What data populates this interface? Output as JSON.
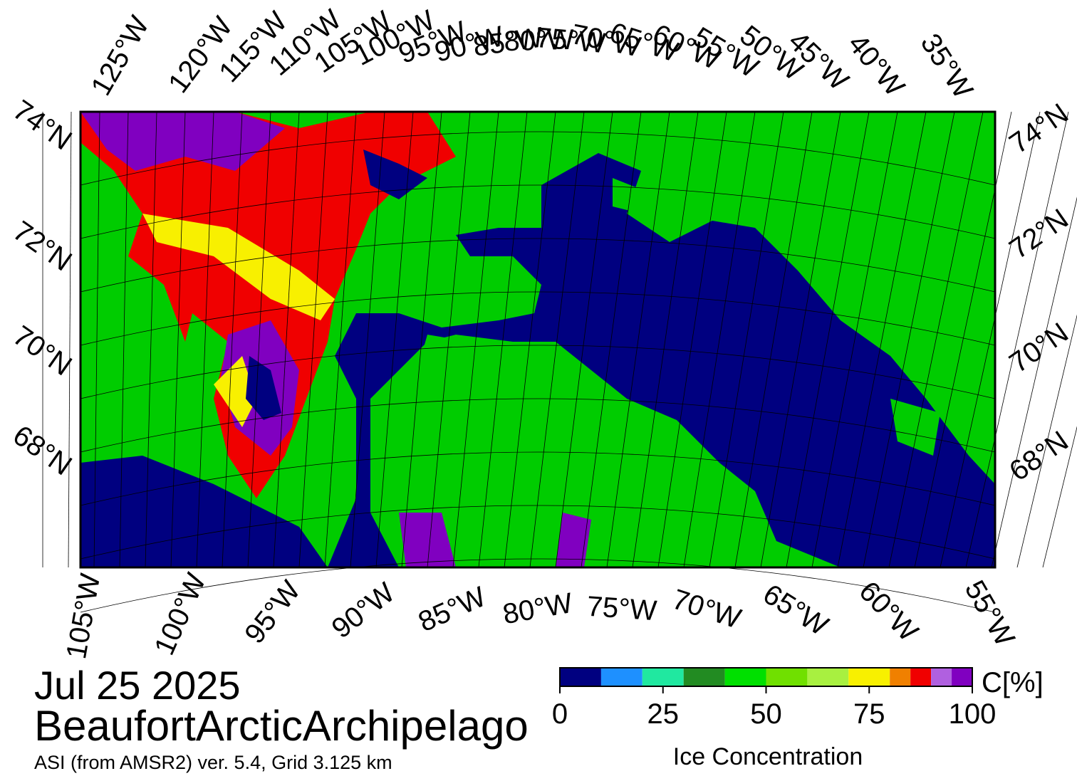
{
  "header": {
    "date": "Jul 25 2025",
    "region": "BeaufortArcticArchipelago",
    "subtitle": "ASI (from AMSR2) ver. 5.4,  Grid 3.125 km"
  },
  "map": {
    "top_lon_labels": [
      "125°W",
      "120°W",
      "115°W",
      "110°W",
      "105°W",
      "100°W",
      "95°W",
      "90°W",
      "85°W",
      "80°W",
      "75°W",
      "70°W",
      "65°W",
      "60°W",
      "55°W",
      "50°W",
      "45°W",
      "40°W",
      "35°W"
    ],
    "bottom_lon_labels": [
      "105°W",
      "100°W",
      "95°W",
      "90°W",
      "85°W",
      "80°W",
      "75°W",
      "70°W",
      "65°W",
      "60°W",
      "55°W"
    ],
    "left_lat_labels": [
      "74°N",
      "72°N",
      "70°N",
      "68°N"
    ],
    "right_lat_labels": [
      "74°N",
      "72°N",
      "70°N",
      "68°N"
    ]
  },
  "colorbar": {
    "unit": "C[%]",
    "title": "Ice Concentration",
    "lim": [
      0,
      100
    ],
    "ticks": [
      0,
      25,
      50,
      75,
      100
    ],
    "bounds": [
      0,
      10,
      20,
      30,
      40,
      50,
      60,
      70,
      80,
      85,
      90,
      95,
      100
    ],
    "colors": [
      "#000080",
      "#1e90ff",
      "#20e8a0",
      "#228b22",
      "#00e000",
      "#70e000",
      "#a8f040",
      "#f8f000",
      "#f08000",
      "#f00000",
      "#b060e0",
      "#8000c0"
    ]
  }
}
